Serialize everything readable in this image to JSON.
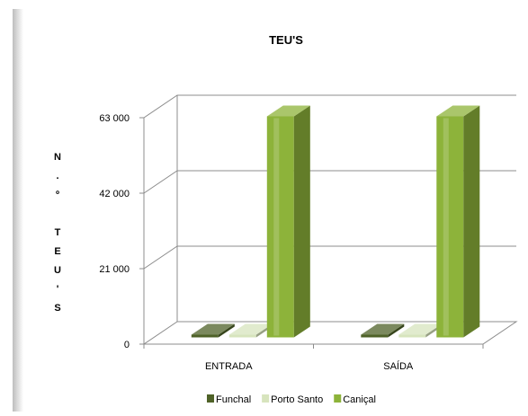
{
  "chart_data": {
    "type": "bar",
    "title": "TEU'S",
    "ylabel": "N.º TEU'S",
    "ylabel_chars": [
      "N",
      ".",
      "º",
      "",
      "T",
      "E",
      "U",
      "'",
      "S"
    ],
    "categories": [
      "ENTRADA",
      "SAÍDA"
    ],
    "series": [
      {
        "name": "Funchal",
        "values": [
          0,
          0
        ]
      },
      {
        "name": "Porto Santo",
        "values": [
          0,
          0
        ]
      },
      {
        "name": "Caniçal",
        "values": [
          61500,
          61500
        ]
      }
    ],
    "ylim": [
      0,
      63000
    ],
    "yticks": [
      "0",
      "21 000",
      "42 000",
      "63 000"
    ],
    "ytick_values": [
      0,
      21000,
      42000,
      63000
    ],
    "grid": true,
    "legend_position": "bottom",
    "colors": {
      "Funchal": "#4f6228",
      "Porto Santo": "#d7e4bd",
      "Caniçal": "#8db33a",
      "grid": "#8c8c8c"
    }
  }
}
